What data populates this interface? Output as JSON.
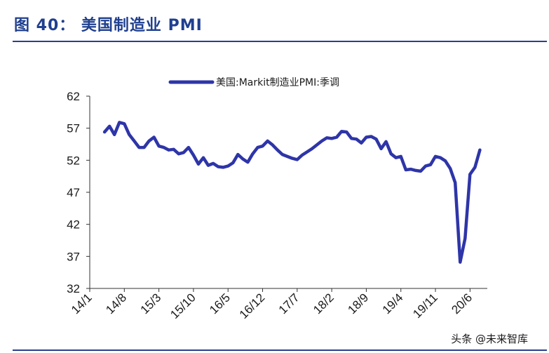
{
  "title": "图 40： 美国制造业 PMI",
  "watermark": "头条 @未来智库",
  "colors": {
    "title": "#1f3f8f",
    "rule": "#2a3f8f",
    "series": "#2e35a8",
    "axis": "#333333"
  },
  "chart_data": {
    "type": "line",
    "title": "图 40： 美国制造业 PMI",
    "xlabel": "",
    "ylabel": "",
    "ylim": [
      32,
      62
    ],
    "yticks": [
      62,
      57,
      52,
      47,
      42,
      37,
      32
    ],
    "xticks": [
      "14/1",
      "14/8",
      "15/3",
      "15/10",
      "16/5",
      "16/12",
      "17/7",
      "18/2",
      "18/9",
      "19/4",
      "19/11",
      "20/6"
    ],
    "grid": false,
    "legend": "top-center",
    "series": [
      {
        "name": "美国:Markit制造业PMI:季调",
        "x": [
          "14/4",
          "14/5",
          "14/6",
          "14/7",
          "14/8",
          "14/9",
          "14/10",
          "14/11",
          "14/12",
          "15/1",
          "15/2",
          "15/3",
          "15/4",
          "15/5",
          "15/6",
          "15/7",
          "15/8",
          "15/9",
          "15/10",
          "15/11",
          "15/12",
          "16/1",
          "16/2",
          "16/3",
          "16/4",
          "16/5",
          "16/6",
          "16/7",
          "16/8",
          "16/9",
          "16/10",
          "16/11",
          "16/12",
          "17/1",
          "17/2",
          "17/3",
          "17/4",
          "17/5",
          "17/6",
          "17/7",
          "17/8",
          "17/9",
          "17/10",
          "17/11",
          "17/12",
          "18/1",
          "18/2",
          "18/3",
          "18/4",
          "18/5",
          "18/6",
          "18/7",
          "18/8",
          "18/9",
          "18/10",
          "18/11",
          "18/12",
          "19/1",
          "19/2",
          "19/3",
          "19/4",
          "19/5",
          "19/6",
          "19/7",
          "19/8",
          "19/9",
          "19/10",
          "19/11",
          "19/12",
          "20/1",
          "20/2",
          "20/3",
          "20/4",
          "20/5",
          "20/6",
          "20/7",
          "20/8"
        ],
        "values": [
          56.4,
          57.3,
          56.0,
          57.9,
          57.7,
          56.0,
          55.0,
          54.0,
          54.0,
          55.0,
          55.6,
          54.2,
          54.0,
          53.6,
          53.7,
          53.0,
          53.2,
          54.0,
          52.8,
          51.4,
          52.4,
          51.2,
          51.5,
          51.0,
          50.9,
          51.1,
          51.6,
          52.9,
          52.2,
          51.7,
          53.0,
          54.0,
          54.2,
          55.0,
          54.4,
          53.6,
          52.9,
          52.6,
          52.3,
          52.1,
          52.8,
          53.3,
          53.8,
          54.4,
          55.0,
          55.5,
          55.4,
          55.6,
          56.5,
          56.4,
          55.4,
          55.3,
          54.7,
          55.6,
          55.7,
          55.3,
          53.8,
          54.9,
          53.0,
          52.4,
          52.6,
          50.5,
          50.6,
          50.4,
          50.3,
          51.1,
          51.3,
          52.6,
          52.4,
          51.9,
          50.7,
          48.5,
          36.1,
          39.8,
          49.8,
          50.9,
          53.6
        ]
      }
    ]
  }
}
